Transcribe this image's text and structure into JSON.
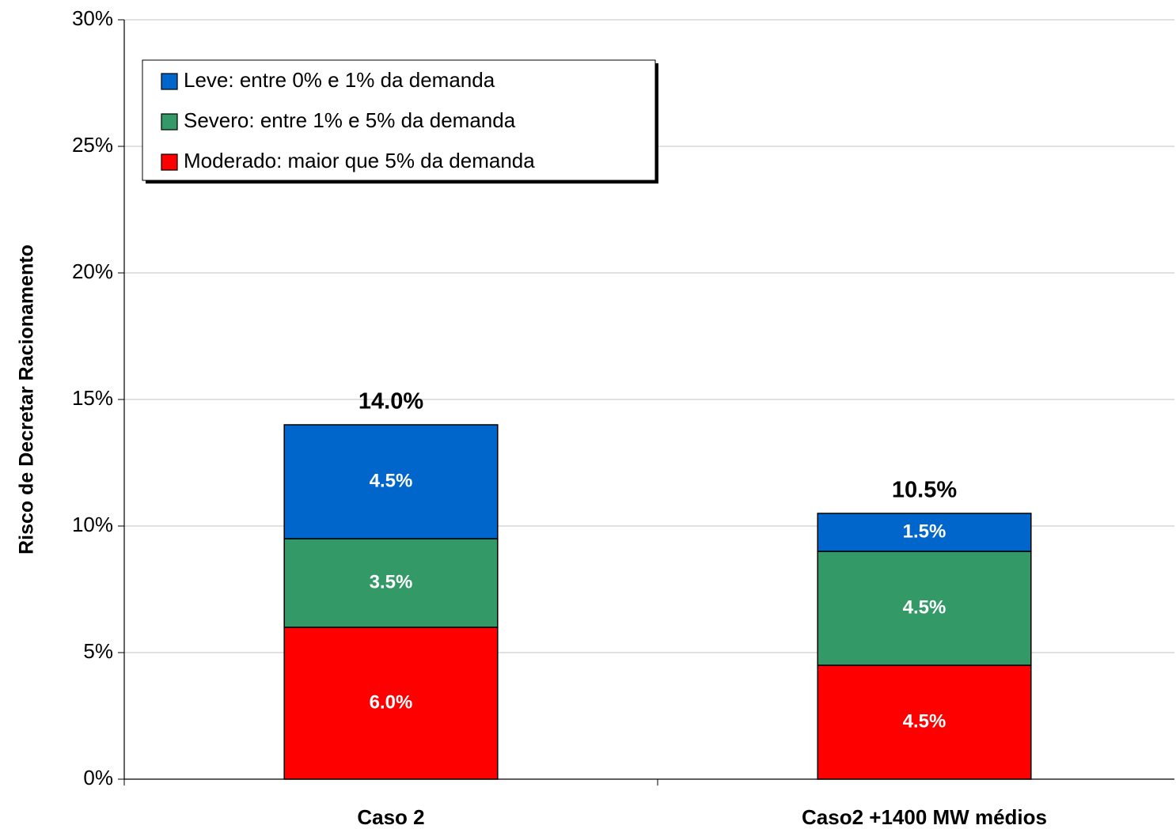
{
  "chart_data": {
    "type": "stacked_bar",
    "y_label": "Risco de Decretar Racionamento",
    "categories": [
      "Caso 2",
      "Caso2 +1400 MW médios"
    ],
    "series": [
      {
        "name": "Leve: entre 0% e 1% da demanda",
        "color": "#0066cc",
        "values": [
          4.5,
          1.5
        ],
        "value_labels": [
          "4.5%",
          "1.5%"
        ]
      },
      {
        "name": "Severo: entre 1% e 5% da demanda",
        "color": "#339966",
        "values": [
          3.5,
          4.5
        ],
        "value_labels": [
          "3.5%",
          "4.5%"
        ]
      },
      {
        "name": "Moderado: maior que 5% da demanda",
        "color": "#ff0000",
        "values": [
          6.0,
          4.5
        ],
        "value_labels": [
          "6.0%",
          "4.5%"
        ]
      }
    ],
    "totals": [
      14.0,
      10.5
    ],
    "total_labels": [
      "14.0%",
      "10.5%"
    ],
    "ylim": [
      0,
      30
    ],
    "yticks": [
      {
        "value": 0,
        "label": "0%"
      },
      {
        "value": 5,
        "label": "5%"
      },
      {
        "value": 10,
        "label": "10%"
      },
      {
        "value": 15,
        "label": "15%"
      },
      {
        "value": 20,
        "label": "20%"
      },
      {
        "value": 25,
        "label": "25%"
      },
      {
        "value": 30,
        "label": "30%"
      }
    ],
    "grid": true,
    "legend": "upper left"
  }
}
